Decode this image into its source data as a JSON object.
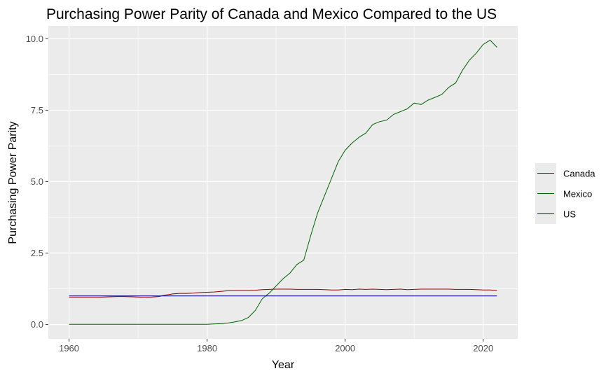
{
  "chart_data": {
    "type": "line",
    "title": "Purchasing Power Parity of Canada and Mexico Compared to the US",
    "xlabel": "Year",
    "ylabel": "Purchasing Power Parity",
    "xlim": [
      1957,
      2025
    ],
    "ylim": [
      -0.5,
      10.45
    ],
    "x_ticks": [
      1960,
      1980,
      2000,
      2020
    ],
    "x_tick_labels": [
      "1960",
      "1980",
      "2000",
      "2020"
    ],
    "y_ticks": [
      0,
      2.5,
      5,
      7.5,
      10
    ],
    "y_tick_labels": [
      "0.0",
      "2.5",
      "5.0",
      "7.5",
      "10.0"
    ],
    "grid": true,
    "legend_position": "right",
    "legend": [
      "Canada",
      "Mexico",
      "US"
    ],
    "series": [
      {
        "name": "Canada",
        "color": "#8b0000",
        "x": [
          1960,
          1961,
          1962,
          1963,
          1964,
          1965,
          1966,
          1967,
          1968,
          1969,
          1970,
          1971,
          1972,
          1973,
          1974,
          1975,
          1976,
          1977,
          1978,
          1979,
          1980,
          1981,
          1982,
          1983,
          1984,
          1985,
          1986,
          1987,
          1988,
          1989,
          1990,
          1991,
          1992,
          1993,
          1994,
          1995,
          1996,
          1997,
          1998,
          1999,
          2000,
          2001,
          2002,
          2003,
          2004,
          2005,
          2006,
          2007,
          2008,
          2009,
          2010,
          2011,
          2012,
          2013,
          2014,
          2015,
          2016,
          2017,
          2018,
          2019,
          2020,
          2021,
          2022
        ],
        "y": [
          0.95,
          0.95,
          0.95,
          0.95,
          0.95,
          0.96,
          0.97,
          0.98,
          0.98,
          0.97,
          0.96,
          0.95,
          0.96,
          0.98,
          1.03,
          1.07,
          1.09,
          1.09,
          1.1,
          1.12,
          1.13,
          1.14,
          1.16,
          1.18,
          1.19,
          1.19,
          1.19,
          1.2,
          1.22,
          1.23,
          1.24,
          1.24,
          1.24,
          1.23,
          1.23,
          1.23,
          1.23,
          1.22,
          1.21,
          1.21,
          1.23,
          1.22,
          1.24,
          1.23,
          1.24,
          1.23,
          1.22,
          1.23,
          1.24,
          1.22,
          1.23,
          1.24,
          1.24,
          1.24,
          1.24,
          1.24,
          1.23,
          1.23,
          1.23,
          1.22,
          1.21,
          1.21,
          1.19
        ]
      },
      {
        "name": "Mexico",
        "color": "#006400",
        "x": [
          1960,
          1961,
          1962,
          1963,
          1964,
          1965,
          1966,
          1967,
          1968,
          1969,
          1970,
          1971,
          1972,
          1973,
          1974,
          1975,
          1976,
          1977,
          1978,
          1979,
          1980,
          1981,
          1982,
          1983,
          1984,
          1985,
          1986,
          1987,
          1988,
          1989,
          1990,
          1991,
          1992,
          1993,
          1994,
          1995,
          1996,
          1997,
          1998,
          1999,
          2000,
          2001,
          2002,
          2003,
          2004,
          2005,
          2006,
          2007,
          2008,
          2009,
          2010,
          2011,
          2012,
          2013,
          2014,
          2015,
          2016,
          2017,
          2018,
          2019,
          2020,
          2021,
          2022
        ],
        "y": [
          0.01,
          0.01,
          0.01,
          0.01,
          0.01,
          0.01,
          0.01,
          0.01,
          0.01,
          0.01,
          0.01,
          0.01,
          0.01,
          0.01,
          0.01,
          0.01,
          0.01,
          0.01,
          0.01,
          0.01,
          0.01,
          0.02,
          0.03,
          0.05,
          0.09,
          0.14,
          0.25,
          0.5,
          0.9,
          1.1,
          1.35,
          1.6,
          1.8,
          2.1,
          2.25,
          3.1,
          3.9,
          4.5,
          5.1,
          5.7,
          6.1,
          6.35,
          6.55,
          6.7,
          7.0,
          7.1,
          7.15,
          7.35,
          7.45,
          7.55,
          7.75,
          7.7,
          7.85,
          7.95,
          8.05,
          8.3,
          8.45,
          8.9,
          9.25,
          9.5,
          9.8,
          9.95,
          9.7
        ]
      },
      {
        "name": "US",
        "color": "#00008b",
        "x": [
          1960,
          2022
        ],
        "y": [
          1,
          1
        ]
      }
    ]
  }
}
